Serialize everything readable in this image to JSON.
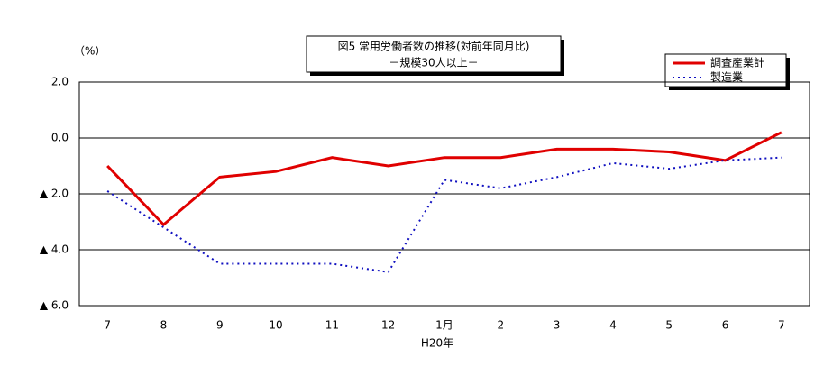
{
  "chart_data": {
    "type": "line",
    "title": "図5  常用労働者数の推移(対前年同月比)",
    "subtitle": "－規模30人以上－",
    "y_unit": "（%）",
    "x_sublabel": "H20年",
    "categories": [
      "7",
      "8",
      "9",
      "10",
      "11",
      "12",
      "1月",
      "2",
      "3",
      "4",
      "5",
      "6",
      "7"
    ],
    "series": [
      {
        "name": "調査産業計",
        "color": "#e00000",
        "style": "solid",
        "values": [
          -1.0,
          -3.1,
          -1.4,
          -1.2,
          -0.7,
          -1.0,
          -0.7,
          -0.7,
          -0.4,
          -0.4,
          -0.5,
          -0.8,
          0.2
        ]
      },
      {
        "name": "製造業",
        "color": "#1010c0",
        "style": "dotted",
        "values": [
          -1.9,
          -3.2,
          -4.5,
          -4.5,
          -4.5,
          -4.8,
          -1.5,
          -1.8,
          -1.4,
          -0.9,
          -1.1,
          -0.8,
          -0.7
        ]
      }
    ],
    "ylim": [
      -6,
      2
    ],
    "yticks": [
      {
        "value": 2,
        "label": "2.0"
      },
      {
        "value": 0,
        "label": "0.0"
      },
      {
        "value": -2,
        "label": "▲ 2.0"
      },
      {
        "value": -4,
        "label": "▲ 4.0"
      },
      {
        "value": -6,
        "label": "▲ 6.0"
      }
    ],
    "grid": true
  }
}
